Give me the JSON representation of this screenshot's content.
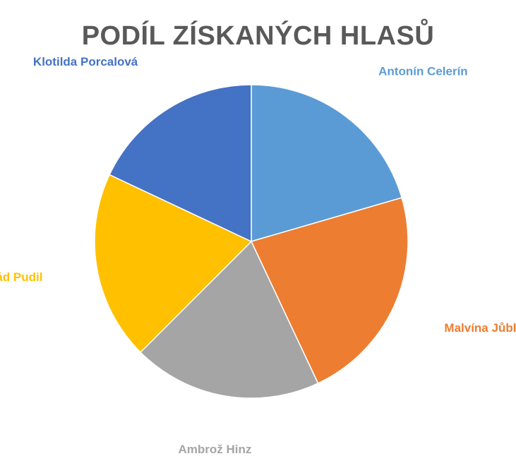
{
  "chart_data": {
    "type": "pie",
    "title": "PODÍL ZÍSKANÝCH HLASŮ",
    "slices": [
      {
        "name": "Antonín Celerín",
        "value": 20.5,
        "color": "#5B9BD5"
      },
      {
        "name": "Malvína Jůblová",
        "value": 22.5,
        "color": "#ED7D31"
      },
      {
        "name": "Ambrož Hinz",
        "value": 19.5,
        "color": "#A5A5A5"
      },
      {
        "name": "Konrád Pudil",
        "value": 19.5,
        "color": "#FFC000"
      },
      {
        "name": "Klotilda Porcalová",
        "value": 18.0,
        "color": "#4472C4"
      }
    ],
    "legend": "none",
    "labels_position": "outside"
  }
}
